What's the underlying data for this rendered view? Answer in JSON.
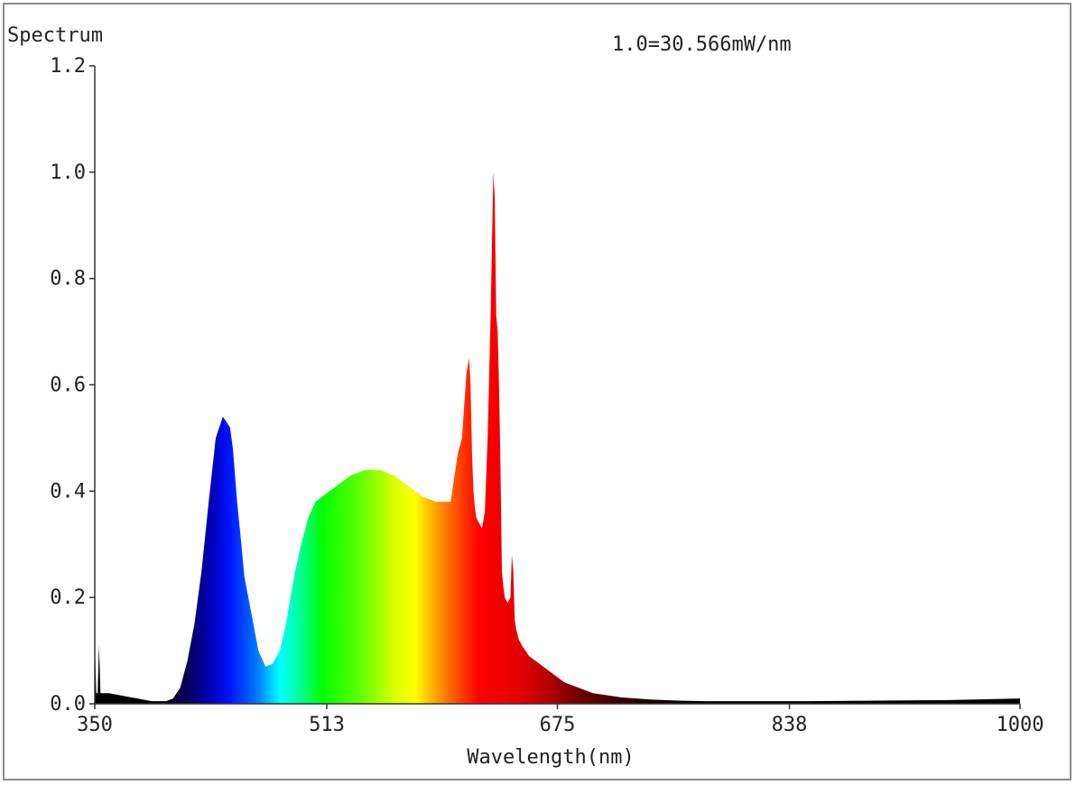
{
  "chart_data": {
    "type": "area",
    "title": "Spectrum",
    "annotation": "1.0=30.566mW/nm",
    "xlabel": "Wavelength(nm)",
    "ylabel": "",
    "xlim": [
      350,
      1000
    ],
    "ylim": [
      0,
      1.2
    ],
    "x_ticks": [
      "350",
      "513",
      "675",
      "838",
      "1000"
    ],
    "y_ticks": [
      "0.0",
      "0.2",
      "0.4",
      "0.6",
      "0.8",
      "1.0",
      "1.2"
    ],
    "grid": false,
    "fill": "wavelength-colored spectrum",
    "series": [
      {
        "x": [
          350,
          351,
          352,
          353,
          354,
          355,
          360,
          370,
          380,
          390,
          400,
          405,
          410,
          415,
          420,
          425,
          430,
          435,
          440,
          445,
          447,
          450,
          453,
          455,
          460,
          465,
          470,
          475,
          480,
          485,
          490,
          495,
          500,
          505,
          510,
          515,
          520,
          525,
          530,
          540,
          550,
          560,
          570,
          580,
          590,
          600,
          605,
          608,
          611,
          613,
          614,
          615,
          616,
          617,
          618,
          620,
          622,
          624,
          626,
          628,
          630,
          631,
          632,
          633,
          634,
          635,
          636,
          637,
          638,
          640,
          642,
          643,
          644,
          645,
          646,
          648,
          650,
          655,
          660,
          670,
          680,
          690,
          700,
          720,
          740,
          760,
          780,
          800,
          850,
          900,
          950,
          1000
        ],
        "values": [
          0.12,
          0.02,
          0.02,
          0.11,
          0.02,
          0.02,
          0.02,
          0.015,
          0.01,
          0.005,
          0.005,
          0.01,
          0.03,
          0.08,
          0.15,
          0.25,
          0.38,
          0.5,
          0.54,
          0.52,
          0.48,
          0.38,
          0.3,
          0.24,
          0.17,
          0.1,
          0.07,
          0.075,
          0.1,
          0.16,
          0.24,
          0.3,
          0.35,
          0.38,
          0.39,
          0.4,
          0.41,
          0.42,
          0.43,
          0.44,
          0.44,
          0.43,
          0.41,
          0.39,
          0.38,
          0.38,
          0.47,
          0.5,
          0.62,
          0.65,
          0.6,
          0.47,
          0.4,
          0.37,
          0.35,
          0.34,
          0.33,
          0.36,
          0.5,
          0.72,
          1.0,
          0.95,
          0.73,
          0.7,
          0.6,
          0.45,
          0.25,
          0.22,
          0.2,
          0.19,
          0.2,
          0.28,
          0.25,
          0.16,
          0.14,
          0.12,
          0.11,
          0.09,
          0.08,
          0.06,
          0.04,
          0.03,
          0.02,
          0.012,
          0.008,
          0.006,
          0.005,
          0.005,
          0.005,
          0.006,
          0.007,
          0.01
        ]
      }
    ]
  }
}
